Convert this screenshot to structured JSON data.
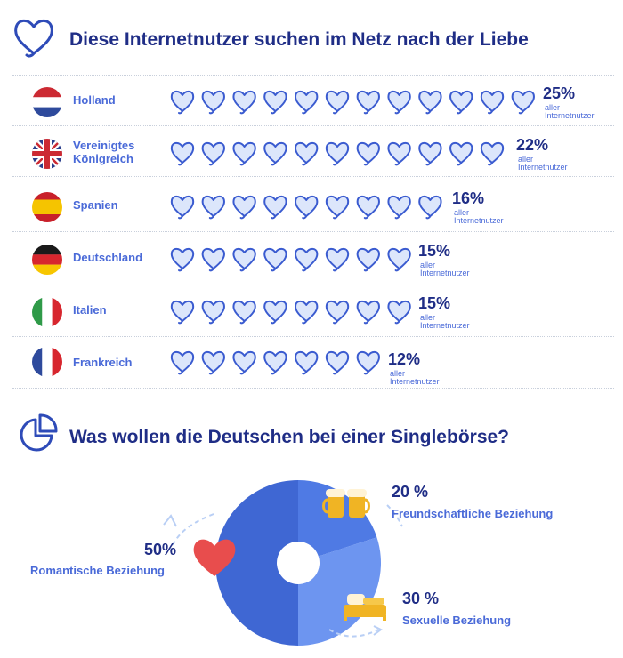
{
  "header": {
    "title1": "Diese Internetnutzer suchen im Netz nach der Liebe",
    "title2": "Was wollen die Deutschen bei einer Singlebörse?"
  },
  "colors": {
    "dark": "#1f2d86",
    "accent": "#4a6ad8",
    "heart_fill": "#dce6fb",
    "pie_dark": "#3f67d3",
    "pie_mid": "#4f7ae4",
    "pie_light": "#6d95f0"
  },
  "chart_data": [
    {
      "type": "bar",
      "title": "Diese Internetnutzer suchen im Netz nach der Liebe",
      "categories": [
        "Holland",
        "Vereinigtes Königreich",
        "Spanien",
        "Deutschland",
        "Italien",
        "Frankreich"
      ],
      "values": [
        25,
        22,
        16,
        15,
        15,
        12
      ],
      "hearts": [
        12,
        11,
        9,
        8,
        8,
        7
      ],
      "value_labels": [
        "25%",
        "22%",
        "16%",
        "15%",
        "15%",
        "12%"
      ],
      "sublabel_1": "aller",
      "sublabel_2": "Internetnutzer"
    },
    {
      "type": "pie",
      "title": "Was wollen die Deutschen bei einer Singlebörse?",
      "slices": [
        {
          "label": "Romantische Beziehung",
          "value": 50,
          "value_label": "50%",
          "color": "#3f67d3",
          "icon": "heart-icon"
        },
        {
          "label": "Freundschaftliche Beziehung",
          "value": 20,
          "value_label": "20 %",
          "color": "#4f7ae4",
          "icon": "beer-mugs-icon"
        },
        {
          "label": "Sexuelle Beziehung",
          "value": 30,
          "value_label": "30 %",
          "color": "#6d95f0",
          "icon": "bed-icon"
        }
      ]
    }
  ]
}
